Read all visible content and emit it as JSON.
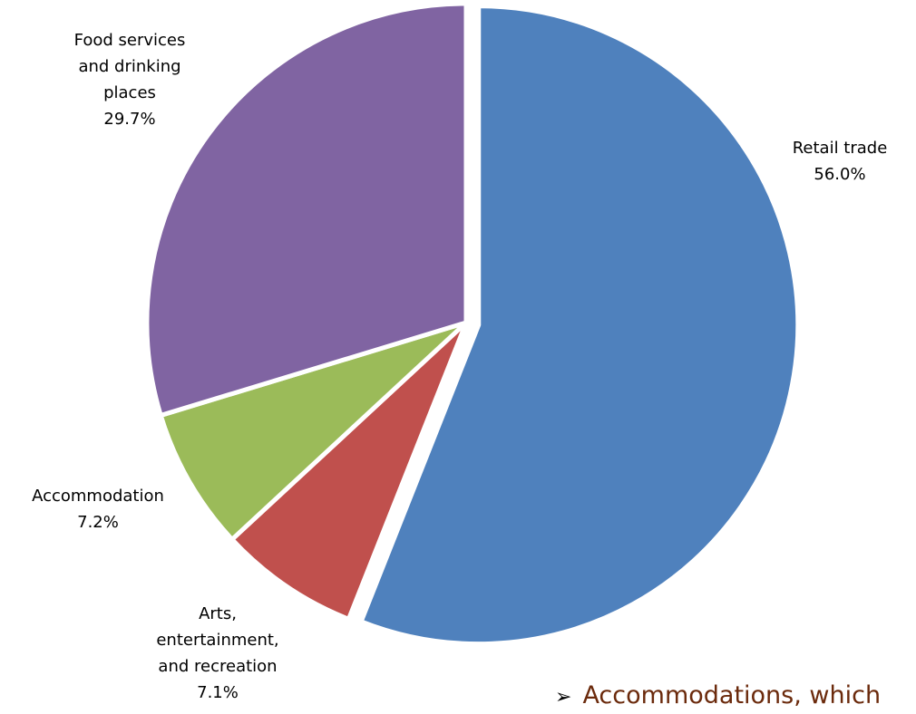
{
  "chart_data": {
    "type": "pie",
    "title": "",
    "slices": [
      {
        "label_lines": [
          "Retail trade",
          "56.0%"
        ],
        "name": "Retail trade",
        "value": 56.0,
        "color": "#4f81bd",
        "exploded": true
      },
      {
        "label_lines": [
          "Arts,",
          "entertainment,",
          "and recreation",
          "7.1%"
        ],
        "name": "Arts, entertainment, and recreation",
        "value": 7.1,
        "color": "#c0504d",
        "exploded": false
      },
      {
        "label_lines": [
          "Accommodation",
          "7.2%"
        ],
        "name": "Accommodation",
        "value": 7.2,
        "color": "#9bbb59",
        "exploded": false
      },
      {
        "label_lines": [
          "Food services",
          "and drinking",
          "places",
          "29.7%"
        ],
        "name": "Food services and drinking places",
        "value": 29.7,
        "color": "#8064a2",
        "exploded": false
      }
    ]
  },
  "slide": {
    "bullet_glyph": "➢",
    "bullet_text": "Accommodations, which"
  }
}
